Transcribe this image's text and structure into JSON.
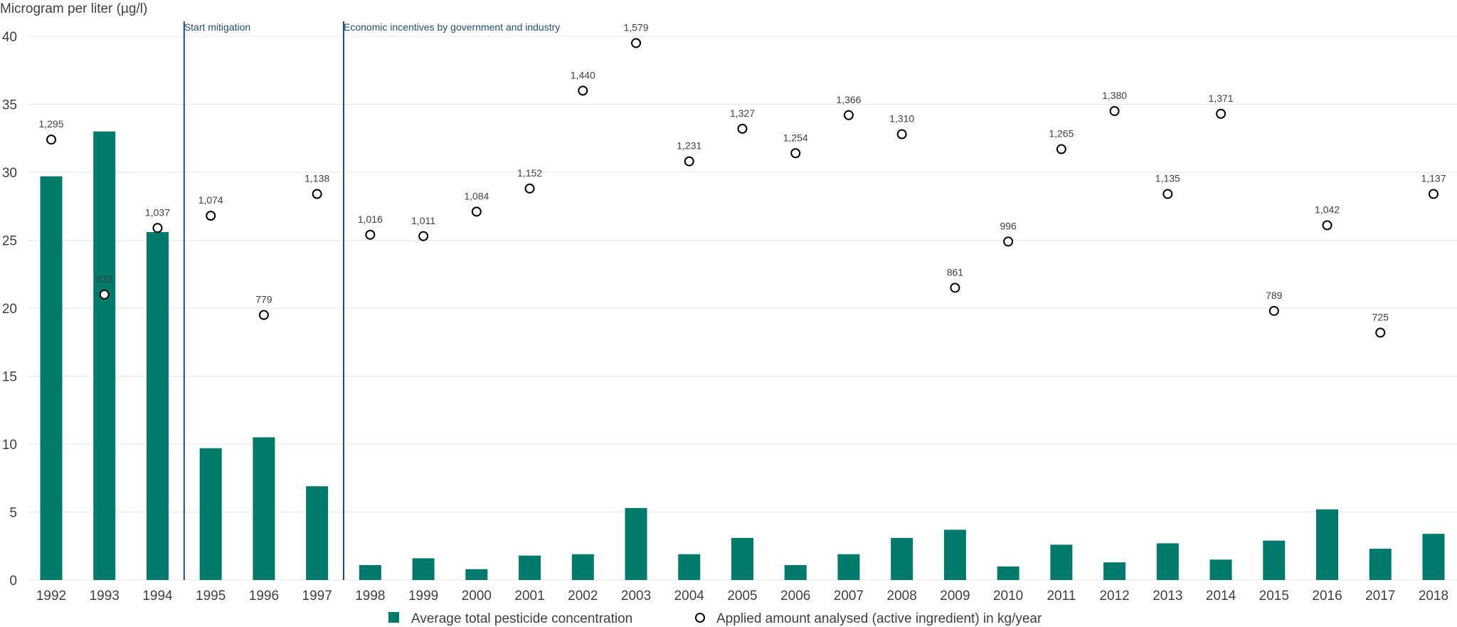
{
  "chart_data": {
    "type": "bar",
    "ylabel": "Microgram per liter (µg/l)",
    "ylim": [
      0,
      40
    ],
    "yticks": [
      0,
      5,
      10,
      15,
      20,
      25,
      30,
      35,
      40
    ],
    "categories": [
      "1992",
      "1993",
      "1994",
      "1995",
      "1996",
      "1997",
      "1998",
      "1999",
      "2000",
      "2001",
      "2002",
      "2003",
      "2004",
      "2005",
      "2006",
      "2007",
      "2008",
      "2009",
      "2010",
      "2011",
      "2012",
      "2013",
      "2014",
      "2015",
      "2016",
      "2017",
      "2018"
    ],
    "series": [
      {
        "name": "Average total pesticide concentration",
        "kind": "bar",
        "color": "#007a6a",
        "values": [
          29.7,
          33.0,
          25.6,
          9.7,
          10.5,
          6.9,
          1.1,
          1.6,
          0.8,
          1.8,
          1.9,
          5.3,
          1.9,
          3.1,
          1.1,
          1.9,
          3.1,
          3.7,
          1.0,
          2.6,
          1.3,
          2.7,
          1.5,
          2.9,
          5.2,
          2.3,
          3.4
        ]
      },
      {
        "name": "Applied amount analysed (active ingredient) in kg/year",
        "kind": "scatter",
        "color": "#000000",
        "y_position": [
          32.4,
          21.0,
          25.9,
          26.8,
          19.5,
          28.4,
          25.4,
          25.3,
          27.1,
          28.8,
          36.0,
          39.5,
          30.8,
          33.2,
          31.4,
          34.2,
          32.8,
          21.5,
          24.9,
          31.7,
          34.5,
          28.4,
          34.3,
          19.8,
          26.1,
          18.2,
          28.4
        ],
        "labels": [
          "1,295",
          "839",
          "1,037",
          "1,074",
          "779",
          "1,138",
          "1,016",
          "1,011",
          "1,084",
          "1,152",
          "1,440",
          "1,579",
          "1,231",
          "1,327",
          "1,254",
          "1,366",
          "1,310",
          "861",
          "996",
          "1,265",
          "1,380",
          "1,135",
          "1,371",
          "789",
          "1,042",
          "725",
          "1,137"
        ]
      }
    ],
    "annotations": [
      {
        "text": "Start mitigation",
        "between": [
          "1994",
          "1995"
        ]
      },
      {
        "text": "Economic incentives by government and industry",
        "between": [
          "1997",
          "1998"
        ]
      }
    ],
    "grid": true,
    "legend_position": "bottom-center"
  }
}
